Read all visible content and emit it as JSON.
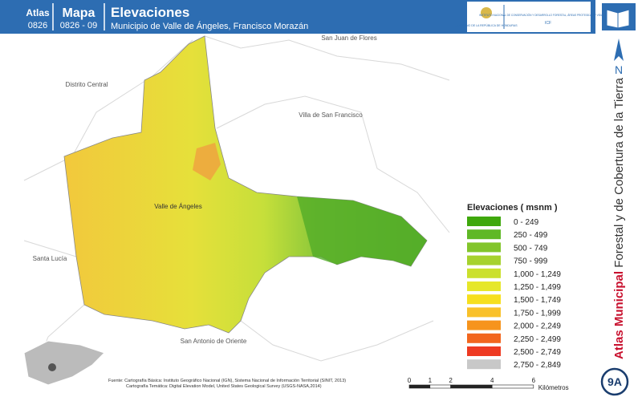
{
  "header": {
    "atlas_label": "Atlas",
    "atlas_code": "0826",
    "map_label": "Mapa",
    "map_code": "0826 - 09",
    "title": "Elevaciones",
    "subtitle": "Municipio de Valle de Ángeles, Francisco Morazán",
    "logo_left": "GOBIERNO DE LA REPÚBLICA DE HONDURAS",
    "logo_right": "INSTITUTO NACIONAL DE CONSERVACIÓN Y DESARROLLO FORESTAL, ÁREAS PROTEGIDAS Y VIDA SILVESTRE",
    "logo_right_short": "ICF"
  },
  "map_labels": [
    {
      "text": "San Juan de Flores"
    },
    {
      "text": "Distrito Central"
    },
    {
      "text": "Villa de San Francisco"
    },
    {
      "text": "Valle de Ángeles"
    },
    {
      "text": "Santa Lucía"
    },
    {
      "text": "San Antonio de Oriente"
    }
  ],
  "legend": {
    "title": "Elevaciones ( msnm )",
    "items": [
      {
        "label": "0 - 249",
        "color": "#3fa80c"
      },
      {
        "label": "250 - 499",
        "color": "#5fb826"
      },
      {
        "label": "500 - 749",
        "color": "#82c52b"
      },
      {
        "label": "750 - 999",
        "color": "#a6d22e"
      },
      {
        "label": "1,000 - 1,249",
        "color": "#cbe02d"
      },
      {
        "label": "1,250 - 1,499",
        "color": "#e6e72a"
      },
      {
        "label": "1,500 - 1,749",
        "color": "#f6df1e"
      },
      {
        "label": "1,750 - 1,999",
        "color": "#f9c12a"
      },
      {
        "label": "2,000 - 2,249",
        "color": "#f6941d"
      },
      {
        "label": "2,250 - 2,499",
        "color": "#f2661e"
      },
      {
        "label": "2,500 - 2,749",
        "color": "#ee3a22"
      },
      {
        "label": "2,750 - 2,849",
        "color": "#c8c8c8"
      }
    ]
  },
  "side": {
    "north": "N",
    "series_bold": "Atlas Municipal",
    "series_rest": " Forestal y de Cobertura de la Tierra",
    "page": "9A"
  },
  "source": {
    "line1": "Fuente: Cartografía Básica: Instituto Geográfico Nacional (IGN), Sistema Nacional de Información Territorial (SINIT, 2013)",
    "line2": "Cartografía Temática: Digital Elevation Model, United States Geological Survey (USGS-NASA,2014)"
  },
  "scale": {
    "ticks": [
      0,
      1,
      2,
      4,
      6
    ],
    "unit": "Kilómetros"
  }
}
